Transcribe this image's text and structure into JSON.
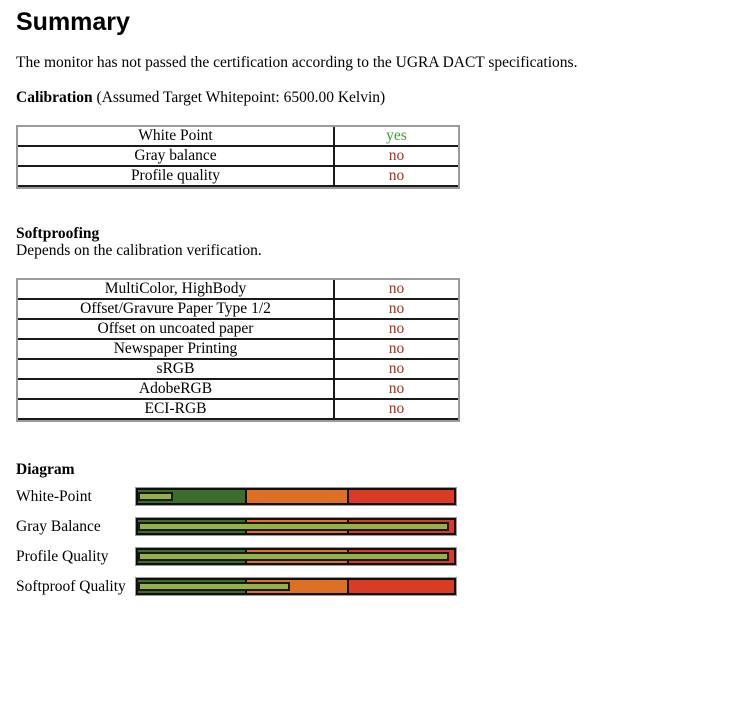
{
  "colors": {
    "pass_text": "#3da32b",
    "fail_text": "#a4341e",
    "zone_green": "#3d6d2d",
    "zone_orange": "#dd7022",
    "zone_red": "#d93b25",
    "indicator_green": "#94b244"
  },
  "header": {
    "title": "Summary",
    "intro": "The monitor has not passed the certification according to the UGRA DACT specifications."
  },
  "calibration": {
    "heading": "Calibration",
    "subtitle": "(Assumed Target Whitepoint: 6500.00 Kelvin)",
    "rows": [
      {
        "label": "White Point",
        "value": "yes",
        "status": "pass"
      },
      {
        "label": "Gray balance",
        "value": "no",
        "status": "fail"
      },
      {
        "label": "Profile quality",
        "value": "no",
        "status": "fail"
      }
    ]
  },
  "softproofing": {
    "heading": "Softproofing",
    "note": "Depends on the calibration verification.",
    "rows": [
      {
        "label": "MultiColor, HighBody",
        "value": "no",
        "status": "fail"
      },
      {
        "label": "Offset/Gravure Paper Type 1/2",
        "value": "no",
        "status": "fail"
      },
      {
        "label": "Offset on uncoated paper",
        "value": "no",
        "status": "fail"
      },
      {
        "label": "Newspaper Printing",
        "value": "no",
        "status": "fail"
      },
      {
        "label": "sRGB",
        "value": "no",
        "status": "fail"
      },
      {
        "label": "AdobeRGB",
        "value": "no",
        "status": "fail"
      },
      {
        "label": "ECI-RGB",
        "value": "no",
        "status": "fail"
      }
    ]
  },
  "diagram": {
    "heading": "Diagram",
    "zones_pct": [
      34,
      32,
      34
    ],
    "bars": [
      {
        "label": "White-Point",
        "indicator_pct": 11
      },
      {
        "label": "Gray Balance",
        "indicator_pct": 98.5
      },
      {
        "label": "Profile Quality",
        "indicator_pct": 98.5
      },
      {
        "label": "Softproof Quality",
        "indicator_pct": 48
      }
    ]
  }
}
